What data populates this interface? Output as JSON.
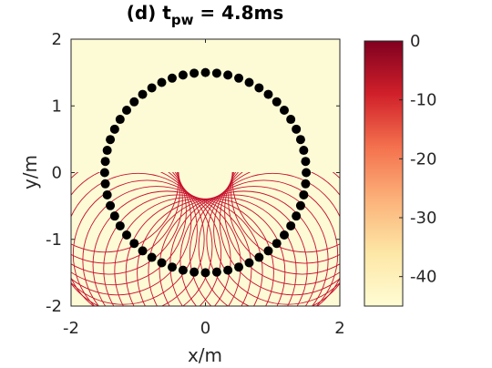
{
  "chart_data": {
    "type": "scatter",
    "title": {
      "prefix": "(d) t",
      "subscript": "pw",
      "suffix": " = 4.8ms"
    },
    "xlabel": "x/m",
    "ylabel": "y/m",
    "xlim": [
      -2,
      2
    ],
    "ylim": [
      -2,
      2
    ],
    "xticks": [
      -2,
      0,
      2
    ],
    "yticks": [
      -2,
      -1,
      0,
      1,
      2
    ],
    "xtick_labels": [
      "-2",
      "0",
      "2"
    ],
    "ytick_labels": [
      "-2",
      "-1",
      "0",
      "1",
      "2"
    ],
    "grid": false,
    "background_color": "#fdfbd6",
    "marker_color": "#000000",
    "wave_color": "#c8102e",
    "array": {
      "shape": "circle",
      "center": [
        0,
        0
      ],
      "radius": 1.5,
      "count": 56
    },
    "wavefronts": {
      "description_note": "circular wavefronts emitted from lower half of the array, visible only for y < 0",
      "source_count": 28,
      "radius": 1.1,
      "clip_y_max": 0
    },
    "colorbar": {
      "min": -45,
      "max": 0,
      "ticks": [
        0,
        -10,
        -20,
        -30,
        -40
      ],
      "tick_labels": [
        "0",
        "-10",
        "-20",
        "-30",
        "-40"
      ],
      "colors": [
        "#fffcd4",
        "#fde7a6",
        "#fcb27a",
        "#f4714e",
        "#d0202a",
        "#800020"
      ]
    }
  }
}
